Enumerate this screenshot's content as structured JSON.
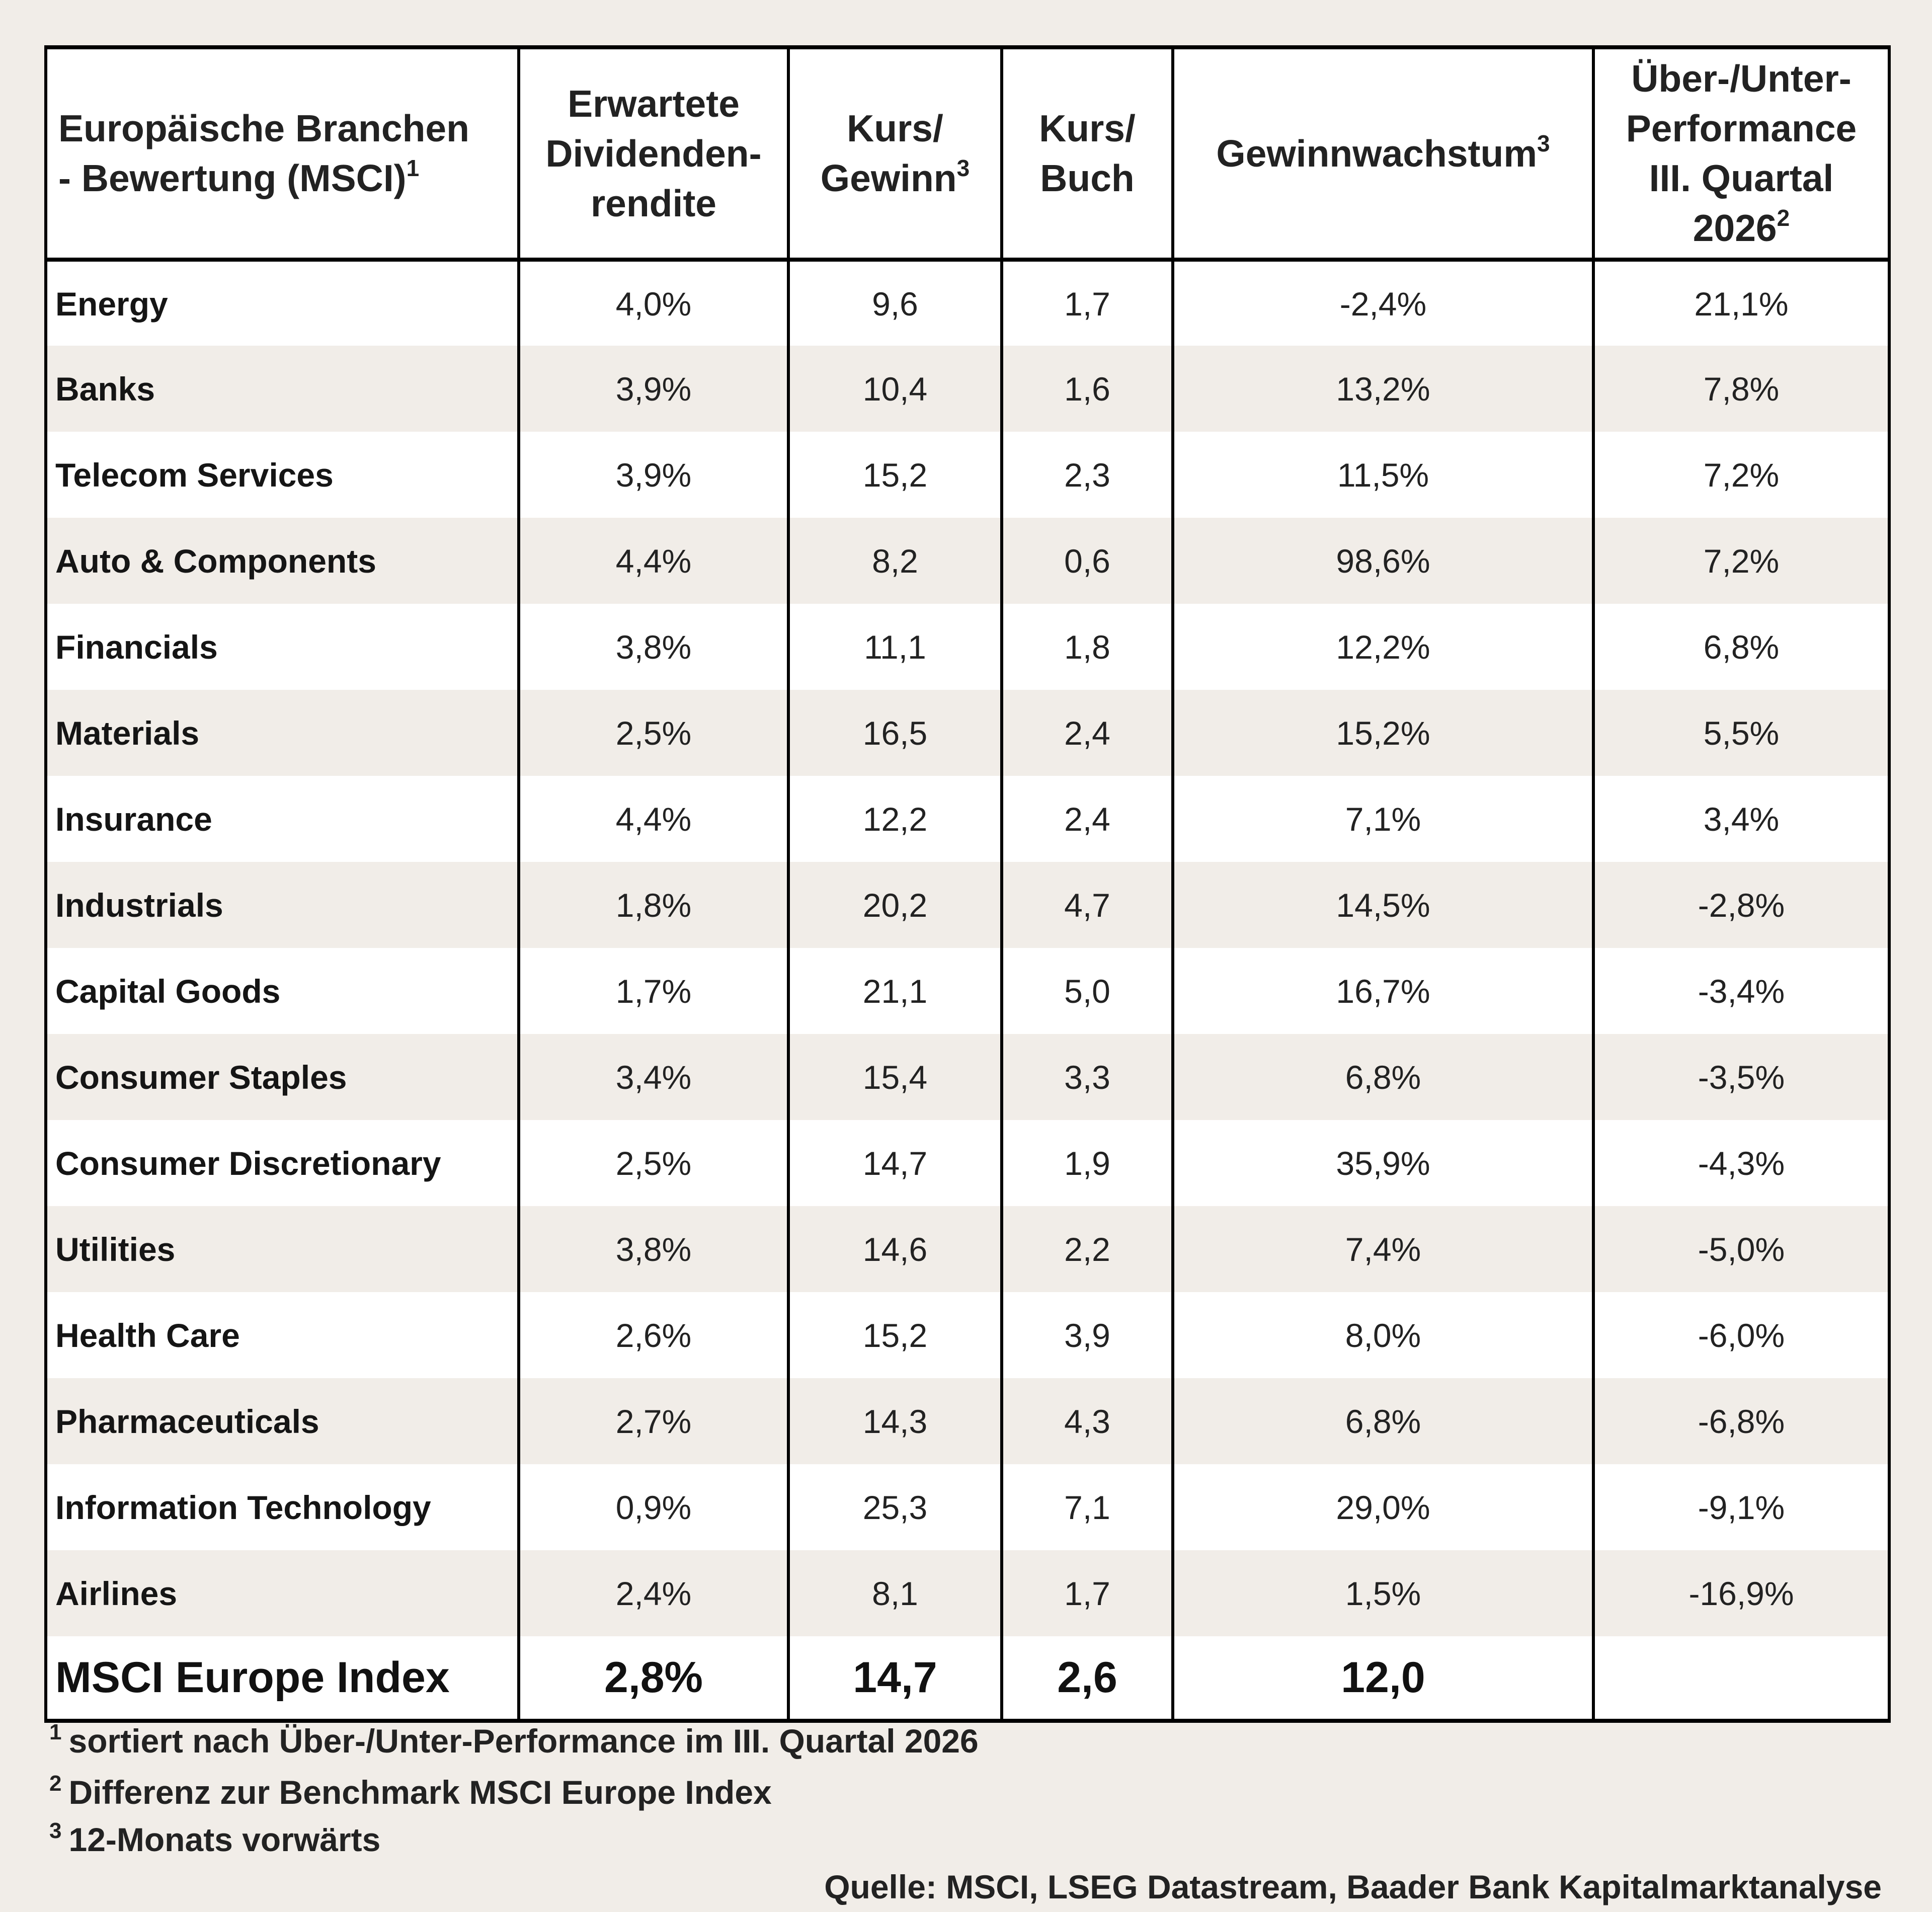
{
  "table": {
    "headers": [
      {
        "lines": [
          "Europäische Branchen",
          "- Bewertung (MSCI)"
        ],
        "sup": "1"
      },
      {
        "lines": [
          "Erwartete",
          "Dividenden-",
          "rendite"
        ],
        "sup": ""
      },
      {
        "lines": [
          "Kurs/",
          "Gewinn"
        ],
        "sup": "3"
      },
      {
        "lines": [
          "Kurs/",
          "Buch"
        ],
        "sup": ""
      },
      {
        "lines": [
          "Gewinnwachstum"
        ],
        "sup": "3"
      },
      {
        "lines": [
          "Über-/Unter-",
          "Performance",
          "III. Quartal",
          "2026"
        ],
        "sup": "2"
      }
    ],
    "rows": [
      {
        "sector": "Energy",
        "dividend_yield": "4,0%",
        "pe": "9,6",
        "pb": "1,7",
        "earnings_growth": "-2,4%",
        "performance": "21,1%"
      },
      {
        "sector": "Banks",
        "dividend_yield": "3,9%",
        "pe": "10,4",
        "pb": "1,6",
        "earnings_growth": "13,2%",
        "performance": "7,8%"
      },
      {
        "sector": "Telecom Services",
        "dividend_yield": "3,9%",
        "pe": "15,2",
        "pb": "2,3",
        "earnings_growth": "11,5%",
        "performance": "7,2%"
      },
      {
        "sector": "Auto & Components",
        "dividend_yield": "4,4%",
        "pe": "8,2",
        "pb": "0,6",
        "earnings_growth": "98,6%",
        "performance": "7,2%"
      },
      {
        "sector": "Financials",
        "dividend_yield": "3,8%",
        "pe": "11,1",
        "pb": "1,8",
        "earnings_growth": "12,2%",
        "performance": "6,8%"
      },
      {
        "sector": "Materials",
        "dividend_yield": "2,5%",
        "pe": "16,5",
        "pb": "2,4",
        "earnings_growth": "15,2%",
        "performance": "5,5%"
      },
      {
        "sector": "Insurance",
        "dividend_yield": "4,4%",
        "pe": "12,2",
        "pb": "2,4",
        "earnings_growth": "7,1%",
        "performance": "3,4%"
      },
      {
        "sector": "Industrials",
        "dividend_yield": "1,8%",
        "pe": "20,2",
        "pb": "4,7",
        "earnings_growth": "14,5%",
        "performance": "-2,8%"
      },
      {
        "sector": "Capital Goods",
        "dividend_yield": "1,7%",
        "pe": "21,1",
        "pb": "5,0",
        "earnings_growth": "16,7%",
        "performance": "-3,4%"
      },
      {
        "sector": "Consumer Staples",
        "dividend_yield": "3,4%",
        "pe": "15,4",
        "pb": "3,3",
        "earnings_growth": "6,8%",
        "performance": "-3,5%"
      },
      {
        "sector": "Consumer Discretionary",
        "dividend_yield": "2,5%",
        "pe": "14,7",
        "pb": "1,9",
        "earnings_growth": "35,9%",
        "performance": "-4,3%"
      },
      {
        "sector": "Utilities",
        "dividend_yield": "3,8%",
        "pe": "14,6",
        "pb": "2,2",
        "earnings_growth": "7,4%",
        "performance": "-5,0%"
      },
      {
        "sector": "Health Care",
        "dividend_yield": "2,6%",
        "pe": "15,2",
        "pb": "3,9",
        "earnings_growth": "8,0%",
        "performance": "-6,0%"
      },
      {
        "sector": "Pharmaceuticals",
        "dividend_yield": "2,7%",
        "pe": "14,3",
        "pb": "4,3",
        "earnings_growth": "6,8%",
        "performance": "-6,8%"
      },
      {
        "sector": "Information Technology",
        "dividend_yield": "0,9%",
        "pe": "25,3",
        "pb": "7,1",
        "earnings_growth": "29,0%",
        "performance": "-9,1%"
      },
      {
        "sector": "Airlines",
        "dividend_yield": "2,4%",
        "pe": "8,1",
        "pb": "1,7",
        "earnings_growth": "1,5%",
        "performance": "-16,9%"
      }
    ],
    "total": {
      "sector": "MSCI Europe Index",
      "dividend_yield": "2,8%",
      "pe": "14,7",
      "pb": "2,6",
      "earnings_growth": "12,0",
      "performance": ""
    }
  },
  "footnotes": [
    {
      "num": "1",
      "text": "sortiert nach Über-/Unter-Performance im III. Quartal 2026"
    },
    {
      "num": "2",
      "text": "Differenz zur Benchmark MSCI Europe Index"
    },
    {
      "num": "3",
      "text": "12-Monats vorwärts"
    }
  ],
  "source": "Quelle: MSCI, LSEG Datastream, Baader Bank Kapitalmarktanalyse",
  "colors": {
    "page_background": "#f1ede8",
    "row_stripe": "#f1ede8",
    "table_background": "#ffffff",
    "border": "#000000"
  }
}
